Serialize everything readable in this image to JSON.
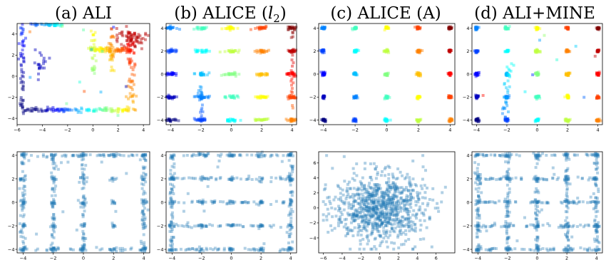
{
  "panels": [
    {
      "label": "(a) ALI"
    },
    {
      "label": "(b) ALICE (",
      "label_math": "l",
      "label_sub": "2",
      "label_end": ")"
    },
    {
      "label": "(c) ALICE (A)"
    },
    {
      "label": "(d) ALI+MINE"
    }
  ],
  "chart_data": [
    {
      "type": "scatter",
      "panel": "a",
      "row": "top",
      "marker": "square",
      "colormap": "jet",
      "xlim": [
        -6,
        4.5
      ],
      "ylim": [
        -4.6,
        5.0
      ],
      "xticks": [
        -6,
        -4,
        -2,
        0,
        2,
        4
      ],
      "yticks": [
        -4,
        -2,
        0,
        2,
        4
      ],
      "note": "collapsed samples along lines y≈5, y≈2.5, y≈-3.2, x≈-5.5, x≈3, plus cluster near (3,4)"
    },
    {
      "type": "scatter",
      "panel": "b",
      "row": "top",
      "marker": "square",
      "colormap": "jet",
      "xlim": [
        -4.3,
        4.3
      ],
      "ylim": [
        -4.4,
        4.4
      ],
      "xticks": [
        -4,
        -2,
        0,
        2,
        4
      ],
      "yticks": [
        -4,
        -2,
        0,
        2,
        4
      ],
      "grid_centers": [
        -4,
        -2,
        0,
        2,
        4
      ],
      "cluster_spread": "elongated horizontally"
    },
    {
      "type": "scatter",
      "panel": "c",
      "row": "top",
      "marker": "square",
      "colormap": "jet",
      "xlim": [
        -4.3,
        4.3
      ],
      "ylim": [
        -4.4,
        4.4
      ],
      "xticks": [
        -4,
        -2,
        0,
        2,
        4
      ],
      "yticks": [
        -4,
        -2,
        0,
        2,
        4
      ],
      "grid_centers": [
        -4,
        -2,
        0,
        2,
        4
      ],
      "cluster_spread": "tight"
    },
    {
      "type": "scatter",
      "panel": "d",
      "row": "top",
      "marker": "square",
      "colormap": "jet",
      "xlim": [
        -4.3,
        4.3
      ],
      "ylim": [
        -4.4,
        4.4
      ],
      "xticks": [
        -4,
        -2,
        0,
        2,
        4
      ],
      "yticks": [
        -4,
        -2,
        0,
        2,
        4
      ],
      "grid_centers": [
        -4,
        -2,
        0,
        2,
        4
      ],
      "cluster_spread": "tight with stray trail near x≈-2"
    },
    {
      "type": "scatter",
      "panel": "a",
      "row": "bottom",
      "marker": "square",
      "color": "#1f77b4",
      "xlim": [
        -4.4,
        4.4
      ],
      "ylim": [
        -4.3,
        4.3
      ],
      "xticks": [
        -4,
        -2,
        0,
        2,
        4
      ],
      "yticks": [
        -4,
        -2,
        0,
        2,
        4
      ],
      "structure": "dense edges x=±4, y=±4, vertical lines x=-2,0"
    },
    {
      "type": "scatter",
      "panel": "b",
      "row": "bottom",
      "marker": "square",
      "color": "#1f77b4",
      "xlim": [
        -4.4,
        4.4
      ],
      "ylim": [
        -4.3,
        4.3
      ],
      "xticks": [
        -4,
        -2,
        0,
        2,
        4
      ],
      "yticks": [
        -4,
        -2,
        0,
        2,
        4
      ],
      "structure": "dense edges x=±4, horizontal lines y=-4,-2,0,2,4"
    },
    {
      "type": "scatter",
      "panel": "c",
      "row": "bottom",
      "marker": "square",
      "color": "#1f77b4",
      "xlim": [
        -6.5,
        8.0
      ],
      "ylim": [
        -6.0,
        7.5
      ],
      "xticks": [
        -6,
        -4,
        -2,
        0,
        2,
        4,
        6
      ],
      "yticks": [
        -4,
        -2,
        0,
        2,
        4,
        6
      ],
      "structure": "diffuse cloud centered at origin"
    },
    {
      "type": "scatter",
      "panel": "d",
      "row": "bottom",
      "marker": "square",
      "color": "#1f77b4",
      "xlim": [
        -4.4,
        4.4
      ],
      "ylim": [
        -4.3,
        4.3
      ],
      "xticks": [
        -4,
        -2,
        0,
        2,
        4
      ],
      "yticks": [
        -4,
        -2,
        0,
        2,
        4
      ],
      "structure": "grid lines at x,y ∈ {-4,-2,0,2,4}"
    }
  ]
}
